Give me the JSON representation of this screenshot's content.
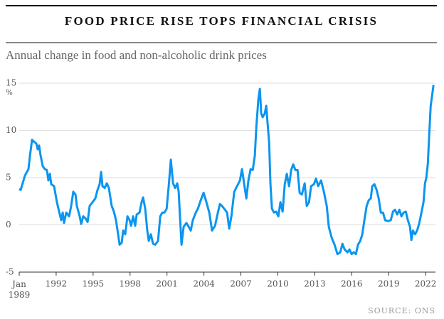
{
  "chart_data": {
    "type": "line",
    "title": "FOOD PRICE RISE TOPS FINANCIAL CRISIS",
    "subtitle": "Annual change in food and non-alcoholic drink prices",
    "y_unit": "%",
    "source": "SOURCE: ONS",
    "xlim": [
      1989,
      2022.8
    ],
    "xticks": [
      {
        "value": 1989,
        "label": "Jan 1989"
      },
      1992,
      1995,
      1998,
      2001,
      2004,
      2007,
      2010,
      2013,
      2016,
      2019,
      2022
    ],
    "ylim": [
      -5,
      15
    ],
    "yticks": [
      -5,
      0,
      5,
      10,
      15
    ],
    "grid": true,
    "series": [
      {
        "name": "Food and non-alcoholic drinks",
        "color": "#0a95f0",
        "x": [
          1989.0,
          1989.12,
          1989.46,
          1989.75,
          1989.87,
          1990.04,
          1990.21,
          1990.39,
          1990.5,
          1990.62,
          1990.73,
          1990.91,
          1991.08,
          1991.25,
          1991.37,
          1991.49,
          1991.6,
          1991.83,
          1992.06,
          1992.24,
          1992.41,
          1992.53,
          1992.64,
          1992.82,
          1993.05,
          1993.22,
          1993.39,
          1993.57,
          1993.68,
          1993.91,
          1994.03,
          1994.2,
          1994.38,
          1994.55,
          1994.72,
          1994.95,
          1995.18,
          1995.36,
          1995.53,
          1995.65,
          1995.76,
          1995.94,
          1996.11,
          1996.28,
          1996.51,
          1996.69,
          1996.86,
          1997.03,
          1997.15,
          1997.32,
          1997.44,
          1997.61,
          1997.79,
          1997.96,
          1998.08,
          1998.25,
          1998.42,
          1998.54,
          1998.77,
          1998.94,
          1999.06,
          1999.23,
          1999.4,
          1999.52,
          1999.69,
          1999.87,
          2000.04,
          2000.27,
          2000.45,
          2000.62,
          2000.79,
          2000.97,
          2001.14,
          2001.31,
          2001.49,
          2001.66,
          2001.83,
          2001.95,
          2002.18,
          2002.35,
          2002.58,
          2002.76,
          2002.93,
          2003.1,
          2003.34,
          2003.51,
          2003.74,
          2003.97,
          2004.2,
          2004.43,
          2004.66,
          2004.9,
          2005.13,
          2005.3,
          2005.47,
          2005.65,
          2005.88,
          2006.05,
          2006.23,
          2006.46,
          2006.69,
          2006.92,
          2007.09,
          2007.27,
          2007.44,
          2007.61,
          2007.79,
          2007.96,
          2008.13,
          2008.25,
          2008.42,
          2008.54,
          2008.65,
          2008.77,
          2008.94,
          2009.06,
          2009.17,
          2009.29,
          2009.4,
          2009.52,
          2009.69,
          2009.87,
          2010.04,
          2010.21,
          2010.39,
          2010.56,
          2010.73,
          2010.91,
          2011.08,
          2011.25,
          2011.43,
          2011.6,
          2011.77,
          2011.95,
          2012.18,
          2012.35,
          2012.53,
          2012.7,
          2012.93,
          2013.1,
          2013.28,
          2013.51,
          2013.74,
          2013.97,
          2014.14,
          2014.38,
          2014.61,
          2014.84,
          2015.07,
          2015.24,
          2015.42,
          2015.65,
          2015.82,
          2015.99,
          2016.17,
          2016.34,
          2016.51,
          2016.69,
          2016.86,
          2017.03,
          2017.21,
          2017.38,
          2017.55,
          2017.67,
          2017.84,
          2018.02,
          2018.19,
          2018.36,
          2018.54,
          2018.71,
          2018.94,
          2019.17,
          2019.35,
          2019.52,
          2019.69,
          2019.87,
          2020.04,
          2020.21,
          2020.39,
          2020.56,
          2020.73,
          2020.85,
          2020.97,
          2021.14,
          2021.31,
          2021.49,
          2021.66,
          2021.83,
          2021.95,
          2022.06,
          2022.18,
          2022.29,
          2022.41,
          2022.53,
          2022.64
        ],
        "values": [
          3.8,
          3.7,
          5.2,
          5.9,
          7.3,
          9.0,
          8.8,
          8.6,
          8.0,
          8.4,
          7.4,
          6.2,
          5.9,
          5.8,
          4.7,
          5.4,
          4.3,
          4.1,
          2.4,
          1.4,
          0.5,
          1.3,
          0.2,
          1.3,
          0.9,
          2.0,
          3.5,
          3.2,
          2.0,
          0.9,
          0.1,
          0.9,
          0.7,
          0.3,
          2.0,
          2.4,
          2.8,
          3.7,
          4.3,
          5.6,
          4.1,
          3.9,
          4.4,
          3.9,
          2.0,
          1.4,
          0.5,
          -1.0,
          -2.1,
          -1.9,
          -0.6,
          -1.0,
          0.9,
          0.5,
          -0.1,
          0.9,
          -0.1,
          1.1,
          1.3,
          2.4,
          2.9,
          1.7,
          -0.6,
          -1.7,
          -1.0,
          -2.0,
          -2.1,
          -1.7,
          0.9,
          1.3,
          1.3,
          1.7,
          4.1,
          6.9,
          4.4,
          3.9,
          4.4,
          3.5,
          -2.1,
          -0.2,
          0.2,
          -0.2,
          -0.6,
          0.5,
          1.3,
          1.7,
          2.6,
          3.4,
          2.4,
          1.3,
          -0.6,
          -0.1,
          1.3,
          2.2,
          2.0,
          1.7,
          1.3,
          -0.4,
          0.9,
          3.5,
          4.1,
          4.7,
          5.9,
          4.3,
          2.8,
          4.7,
          5.9,
          5.8,
          7.3,
          10.3,
          13.3,
          14.4,
          11.8,
          11.4,
          11.8,
          12.6,
          10.7,
          8.8,
          4.3,
          1.7,
          1.3,
          1.4,
          0.9,
          2.4,
          1.4,
          4.3,
          5.4,
          4.1,
          5.8,
          6.4,
          5.8,
          5.8,
          3.4,
          3.2,
          4.4,
          2.0,
          2.4,
          4.1,
          4.3,
          4.9,
          4.1,
          4.7,
          3.5,
          2.0,
          -0.2,
          -1.4,
          -2.1,
          -3.1,
          -2.9,
          -2.0,
          -2.6,
          -2.9,
          -2.6,
          -3.1,
          -2.9,
          -3.1,
          -2.1,
          -1.7,
          -1.0,
          0.5,
          2.0,
          2.6,
          2.8,
          4.1,
          4.3,
          3.7,
          2.8,
          1.3,
          1.3,
          0.5,
          0.4,
          0.5,
          1.4,
          1.6,
          1.1,
          1.6,
          0.9,
          1.3,
          1.4,
          0.5,
          -0.2,
          -1.6,
          -0.6,
          -1.0,
          -0.6,
          0.2,
          1.3,
          2.4,
          4.4,
          5.0,
          6.5,
          9.5,
          12.6,
          13.7,
          14.8
        ]
      }
    ]
  }
}
